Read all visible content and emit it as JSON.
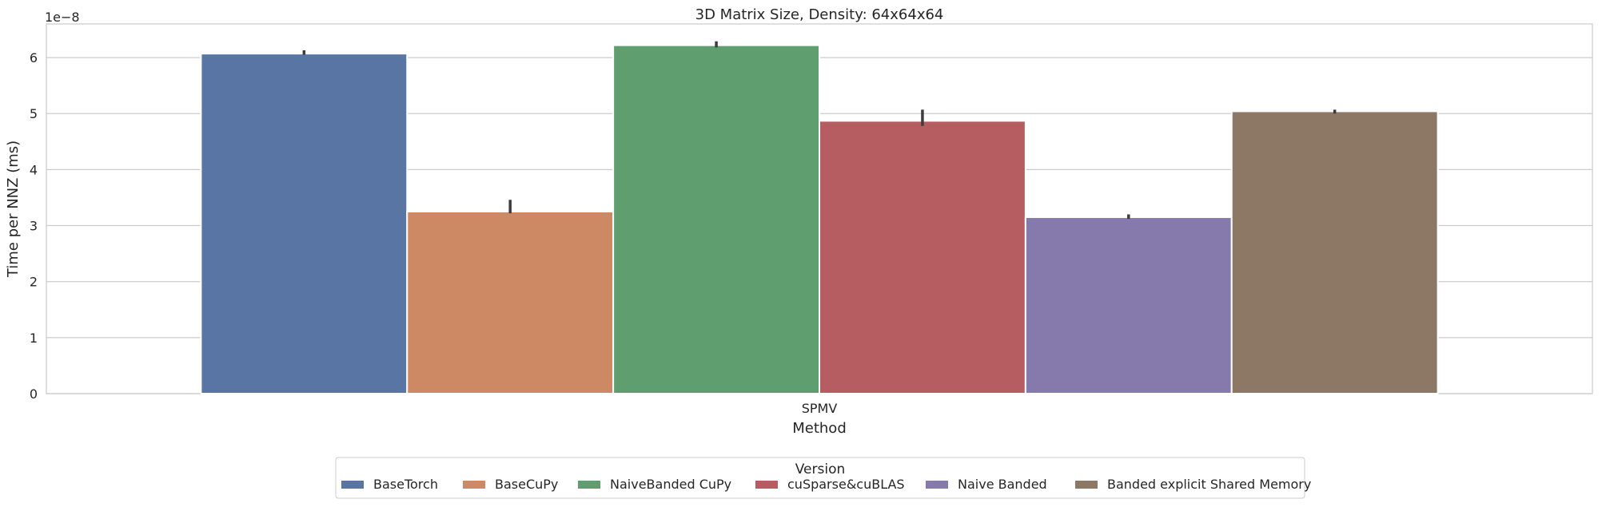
{
  "chart_data": {
    "type": "bar",
    "title": "3D Matrix Size, Density: 64x64x64",
    "xlabel": "Method",
    "ylabel": "Time per NNZ (ms)",
    "y_offset_label": "1e−8",
    "categories": [
      "SPMV"
    ],
    "ylim": [
      0,
      6.6
    ],
    "yticks": [
      "0",
      "1",
      "2",
      "3",
      "4",
      "5",
      "6"
    ],
    "grid": true,
    "legend": {
      "title": "Version",
      "placement": "bottom-center"
    },
    "series": [
      {
        "name": "BaseTorch",
        "color": "#5975a4",
        "values": [
          6.07
        ],
        "error": [
          6.05,
          6.13
        ]
      },
      {
        "name": "BaseCuPy",
        "color": "#cc8963",
        "values": [
          3.25
        ],
        "error": [
          3.22,
          3.46
        ]
      },
      {
        "name": "NaiveBanded CuPy",
        "color": "#5f9e6e",
        "values": [
          6.22
        ],
        "error": [
          6.18,
          6.29
        ]
      },
      {
        "name": "cuSparse&cuBLAS",
        "color": "#b55d60",
        "values": [
          4.87
        ],
        "error": [
          4.78,
          5.07
        ]
      },
      {
        "name": "Naive Banded",
        "color": "#857aab",
        "values": [
          3.15
        ],
        "error": [
          3.12,
          3.2
        ]
      },
      {
        "name": "Banded explicit Shared Memory",
        "color": "#8d7866",
        "values": [
          5.04
        ],
        "error": [
          5.0,
          5.07
        ]
      }
    ]
  }
}
